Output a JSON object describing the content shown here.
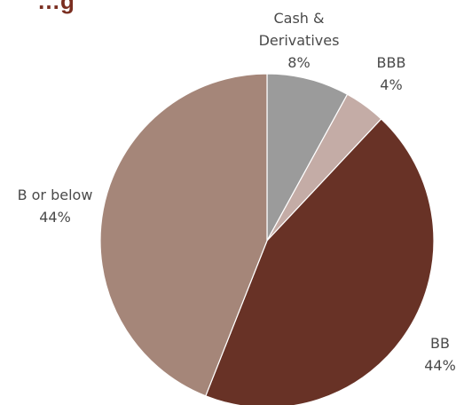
{
  "chart_data": {
    "type": "pie",
    "title": "…g",
    "slices": [
      {
        "label": "Cash &\nDerivatives",
        "value": 8,
        "value_label": "8%",
        "color": "#9b9b9b"
      },
      {
        "label": "BBB",
        "value": 4,
        "value_label": "4%",
        "color": "#c4aca6"
      },
      {
        "label": "BB",
        "value": 44,
        "value_label": "44%",
        "color": "#683226"
      },
      {
        "label": "B or below",
        "value": 44,
        "value_label": "44%",
        "color": "#a58679"
      }
    ],
    "start_angle_deg": 0,
    "direction": "clockwise",
    "legend": "none"
  }
}
